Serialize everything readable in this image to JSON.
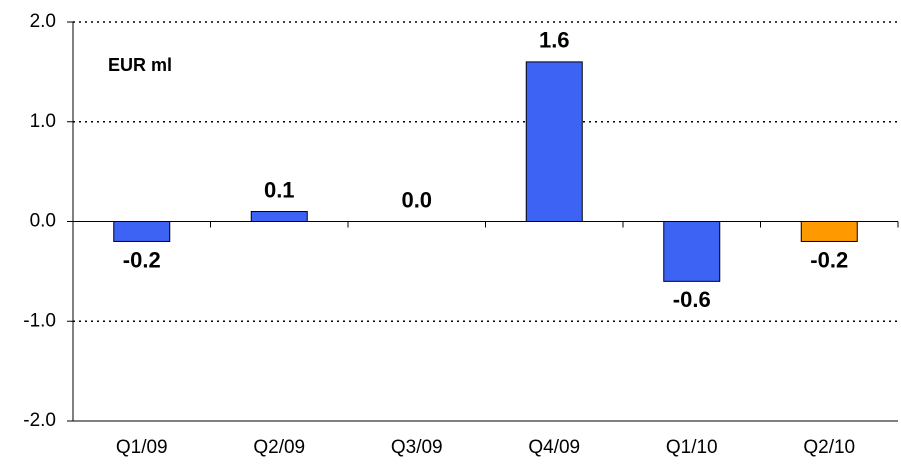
{
  "chart_data": {
    "type": "bar",
    "annotation": "EUR ml",
    "categories": [
      "Q1/09",
      "Q2/09",
      "Q3/09",
      "Q4/09",
      "Q1/10",
      "Q2/10"
    ],
    "values": [
      -0.2,
      0.1,
      0.0,
      1.6,
      -0.6,
      -0.2
    ],
    "value_labels": [
      "-0.2",
      "0.1",
      "0.0",
      "1.6",
      "-0.6",
      "-0.2"
    ],
    "colors": [
      "#3d63f5",
      "#3d63f5",
      "#3d63f5",
      "#3d63f5",
      "#3d63f5",
      "#ff9900"
    ],
    "ylim": [
      -2,
      2
    ],
    "yticks": [
      {
        "value": 2,
        "label": "2.0"
      },
      {
        "value": 1,
        "label": "1.0"
      },
      {
        "value": 0,
        "label": "0.0"
      },
      {
        "value": -1,
        "label": "-1.0"
      },
      {
        "value": -2,
        "label": "-2.0"
      }
    ],
    "grid": true
  }
}
